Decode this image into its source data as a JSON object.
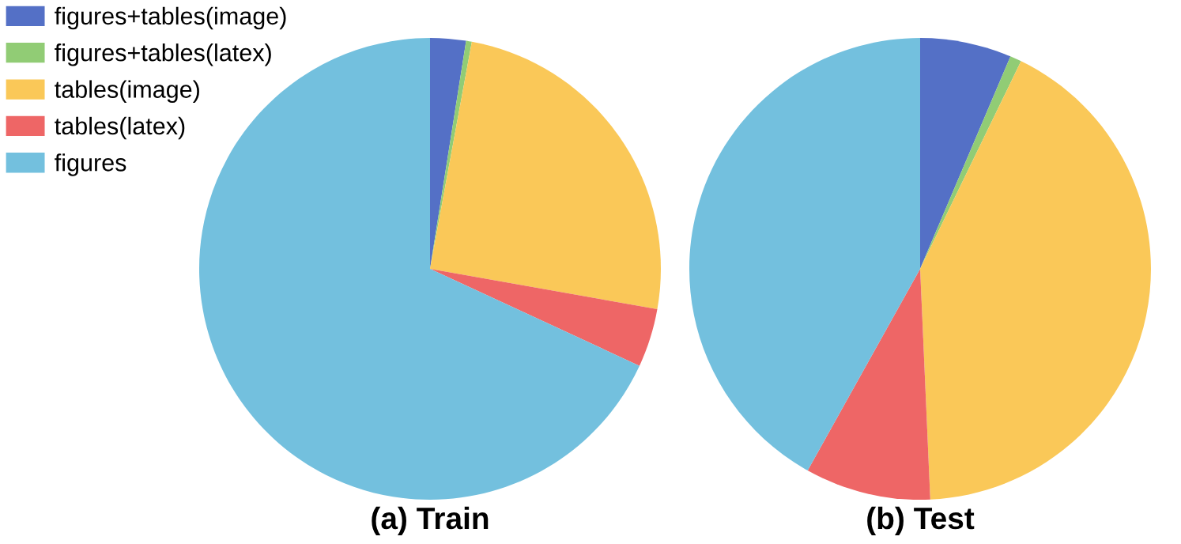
{
  "chart_data": [
    {
      "type": "pie",
      "title": "(a) Train",
      "categories": [
        "figures+tables(image)",
        "figures+tables(latex)",
        "tables(image)",
        "tables(latex)",
        "figures"
      ],
      "values": [
        2.5,
        0.4,
        24.9,
        4.1,
        68.1
      ],
      "colors": [
        "#5470c6",
        "#91cc75",
        "#fac858",
        "#ee6666",
        "#73c0de"
      ],
      "legend": "top left"
    },
    {
      "type": "pie",
      "title": "(b) Test",
      "categories": [
        null,
        null,
        null,
        null,
        null
      ],
      "values": [
        6.4,
        0.8,
        42.1,
        8.8,
        41.9
      ],
      "colors": [
        "#5470c6",
        "#91cc75",
        "#fac858",
        "#ee6666",
        "#73c0de"
      ]
    }
  ]
}
